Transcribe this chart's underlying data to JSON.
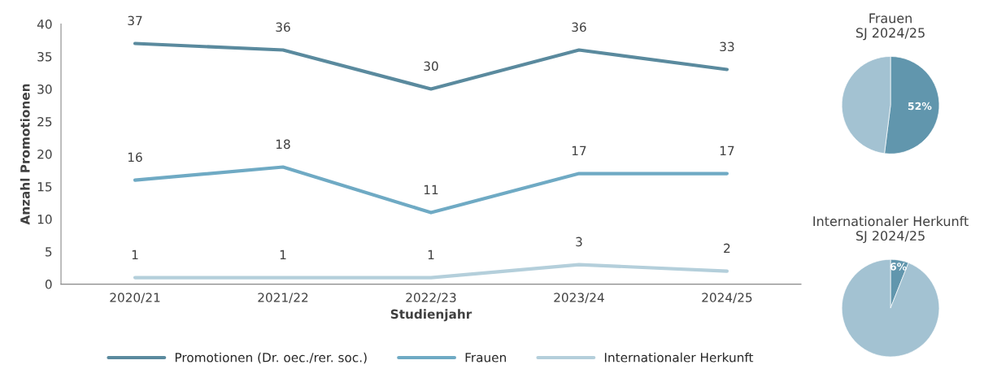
{
  "chart_data": [
    {
      "type": "line",
      "xlabel": "Studienjahr",
      "ylabel": "Anzahl Promotionen",
      "categories": [
        "2020/21",
        "2021/22",
        "2022/23",
        "2023/24",
        "2024/25"
      ],
      "series": [
        {
          "name": "Promotionen (Dr. oec./rer. soc.)",
          "color": "#5a8a9e",
          "values": [
            37,
            36,
            30,
            36,
            33
          ]
        },
        {
          "name": "Frauen",
          "color": "#6faac4",
          "values": [
            16,
            18,
            11,
            17,
            17
          ]
        },
        {
          "name": "Internationaler Herkunft",
          "color": "#b4cfdb",
          "values": [
            1,
            1,
            1,
            3,
            2
          ]
        }
      ],
      "ylim": [
        0,
        40
      ],
      "yticks": [
        0,
        5,
        10,
        15,
        20,
        25,
        30,
        35,
        40
      ],
      "grid": false,
      "legend": "bottom",
      "marker": "none",
      "line_style": "solid",
      "data_labels": true
    },
    {
      "type": "pie",
      "title": "Frauen\nSJ 2024/25",
      "categories": [
        null,
        null
      ],
      "values": [
        52,
        48
      ],
      "colors": [
        "#6196ad",
        "#a3c2d2"
      ],
      "value_labels": [
        "52%",
        null
      ]
    },
    {
      "type": "pie",
      "title": "Internationaler Herkunft\nSJ 2024/25",
      "categories": [
        null,
        null
      ],
      "values": [
        6,
        94
      ],
      "colors": [
        "#6196ad",
        "#a3c2d2"
      ],
      "value_labels": [
        "6%",
        null
      ]
    }
  ]
}
